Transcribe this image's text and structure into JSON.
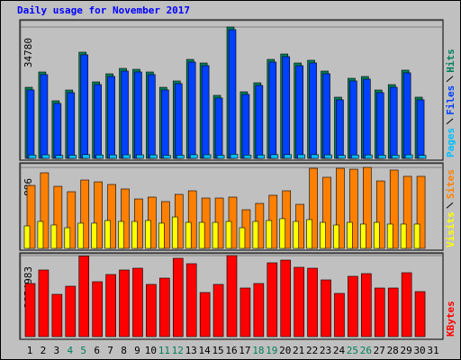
{
  "chart_data": [
    {
      "type": "bar",
      "title": "Daily usage for November 2017",
      "series": [
        {
          "name": "Hits",
          "color": "#00805c",
          "values": [
            18820,
            22870,
            15250,
            18100,
            28110,
            20250,
            22390,
            23820,
            23580,
            22870,
            18820,
            20490,
            26200,
            25250,
            16680,
            34780,
            17630,
            20010,
            26200,
            27630,
            25250,
            25970,
            23110,
            16200,
            21200,
            21680,
            18100,
            19530,
            23350,
            16200,
            null
          ]
        },
        {
          "name": "Files",
          "color": "#0040ff",
          "values": [
            18120,
            22170,
            14550,
            17400,
            27410,
            19550,
            21690,
            23120,
            22880,
            22170,
            18120,
            19790,
            25500,
            24550,
            15980,
            34080,
            16930,
            19310,
            25500,
            26930,
            24550,
            25270,
            22410,
            15500,
            20500,
            20980,
            17400,
            18830,
            22650,
            15500,
            null
          ]
        },
        {
          "name": "Pages",
          "color": "#00c0ff",
          "values": [
            900,
            950,
            800,
            850,
            1000,
            900,
            920,
            950,
            940,
            930,
            820,
            860,
            980,
            960,
            850,
            1100,
            880,
            900,
            990,
            1000,
            970,
            980,
            940,
            820,
            900,
            910,
            860,
            880,
            950,
            820,
            null
          ]
        }
      ],
      "ylim": [
        0,
        34780
      ],
      "yticks": [
        34780
      ]
    },
    {
      "type": "bar",
      "series": [
        {
          "name": "Sites",
          "color": "#ff8000",
          "values": [
            689,
            827,
            679,
            620,
            748,
            728,
            699,
            650,
            541,
            561,
            512,
            591,
            630,
            551,
            551,
            561,
            423,
            492,
            581,
            630,
            482,
            876,
            778,
            876,
            866,
            886,
            738,
            857,
            788,
            788,
            null
          ]
        },
        {
          "name": "Visits",
          "color": "#ffff00",
          "values": [
            246,
            295,
            256,
            226,
            276,
            276,
            305,
            295,
            295,
            305,
            276,
            344,
            285,
            285,
            285,
            295,
            226,
            295,
            305,
            325,
            295,
            315,
            285,
            256,
            285,
            266,
            285,
            266,
            266,
            266,
            null
          ]
        }
      ],
      "ylim": [
        0,
        886
      ],
      "yticks": [
        886
      ]
    },
    {
      "type": "bar",
      "categories": [
        "1",
        "2",
        "3",
        "4",
        "5",
        "6",
        "7",
        "8",
        "9",
        "10",
        "11",
        "12",
        "13",
        "14",
        "15",
        "16",
        "17",
        "18",
        "19",
        "20",
        "21",
        "22",
        "23",
        "24",
        "25",
        "26",
        "27",
        "28",
        "29",
        "30",
        "31"
      ],
      "category_colors": [
        "#000000",
        "#000000",
        "#000000",
        "#00805c",
        "#00805c",
        "#000000",
        "#000000",
        "#000000",
        "#000000",
        "#000000",
        "#00805c",
        "#00805c",
        "#000000",
        "#000000",
        "#000000",
        "#000000",
        "#000000",
        "#00805c",
        "#00805c",
        "#000000",
        "#000000",
        "#000000",
        "#000000",
        "#000000",
        "#00805c",
        "#00805c",
        "#000000",
        "#000000",
        "#000000",
        "#000000",
        "#000000"
      ],
      "series": [
        {
          "name": "KBytes",
          "color": "#ff0000",
          "values": [
            1871600,
            2347400,
            1490900,
            1776400,
            2840000,
            1935000,
            2188800,
            2347400,
            2410900,
            1839900,
            2061900,
            2759800,
            2569500,
            1554400,
            1839900,
            2854983,
            1713000,
            1871600,
            2601200,
            2696400,
            2442600,
            2410900,
            1998500,
            1522700,
            2125400,
            2220500,
            1713000,
            1713000,
            2252300,
            1586100,
            null
          ]
        }
      ],
      "ylim": [
        0,
        2854983
      ],
      "yticks": [
        2854983
      ]
    }
  ]
}
